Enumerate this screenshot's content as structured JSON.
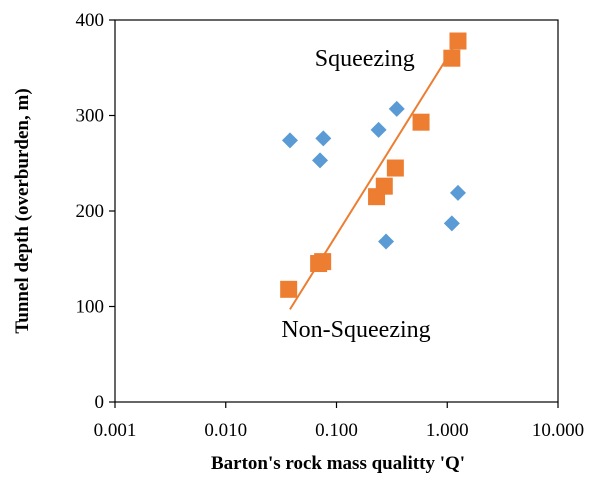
{
  "chart_data": {
    "type": "scatter",
    "xlabel": "Barton's rock mass qualitty 'Q'",
    "ylabel": "Tunnel depth (overburden, m)",
    "x_scale": "log",
    "xlim": [
      0.001,
      10
    ],
    "ylim": [
      0,
      400
    ],
    "x_ticks": [
      0.001,
      0.01,
      0.1,
      1,
      10
    ],
    "x_tick_labels": [
      "0.001",
      "0.010",
      "0.100",
      "1.000",
      "10.000"
    ],
    "y_ticks": [
      0,
      100,
      200,
      300,
      400
    ],
    "y_tick_labels": [
      "0",
      "100",
      "200",
      "300",
      "400"
    ],
    "grid": false,
    "annotations": [
      {
        "id": "squeezing",
        "text": "Squeezing",
        "x": 0.18,
        "y": 352
      },
      {
        "id": "non-squeezing",
        "text": "Non-Squeezing",
        "x": 0.15,
        "y": 68
      }
    ],
    "series": [
      {
        "marker": "diamond",
        "color": "#5B9BD5",
        "points": [
          {
            "x": 0.038,
            "y": 274
          },
          {
            "x": 0.071,
            "y": 253
          },
          {
            "x": 0.076,
            "y": 276
          },
          {
            "x": 0.24,
            "y": 285
          },
          {
            "x": 0.28,
            "y": 168
          },
          {
            "x": 0.35,
            "y": 307
          },
          {
            "x": 1.1,
            "y": 187
          },
          {
            "x": 1.25,
            "y": 219
          }
        ]
      },
      {
        "marker": "square",
        "color": "#ED7D31",
        "trendline": {
          "type": "log",
          "from": [
            0.038,
            97
          ],
          "to": [
            1.27,
            380
          ]
        },
        "points": [
          {
            "x": 0.037,
            "y": 118
          },
          {
            "x": 0.069,
            "y": 145
          },
          {
            "x": 0.075,
            "y": 147
          },
          {
            "x": 0.23,
            "y": 215
          },
          {
            "x": 0.27,
            "y": 226
          },
          {
            "x": 0.34,
            "y": 245
          },
          {
            "x": 0.58,
            "y": 293
          },
          {
            "x": 1.1,
            "y": 360
          },
          {
            "x": 1.25,
            "y": 378
          }
        ]
      }
    ]
  }
}
